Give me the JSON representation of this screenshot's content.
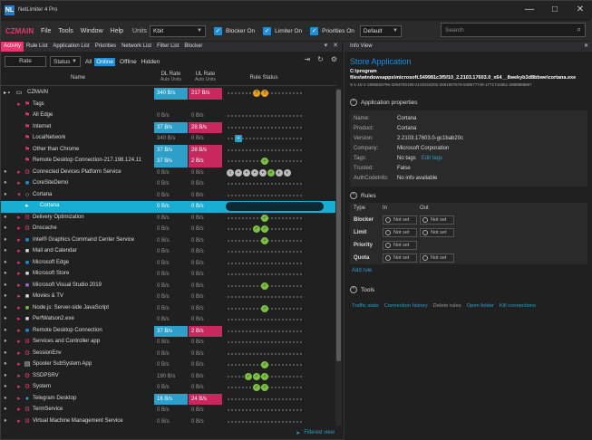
{
  "window": {
    "title": "NetLimiter 4 Pro",
    "logo": "NL",
    "min_icon": "—",
    "max_icon": "□",
    "close_icon": "✕"
  },
  "menubar": {
    "brand": "CZMAIN",
    "items": [
      "File",
      "Tools",
      "Window",
      "Help"
    ],
    "units_label": "Units",
    "units_value": "Kbit",
    "checks": [
      {
        "label": "Blocker On"
      },
      {
        "label": "Limiter On"
      },
      {
        "label": "Priorities On"
      }
    ],
    "profile": "Default",
    "search_placeholder": "Search"
  },
  "tabs": [
    "Activity",
    "Rule List",
    "Application List",
    "Priorities",
    "Network List",
    "Filter List",
    "Blocker"
  ],
  "filterbar": {
    "rate": "Rate",
    "status": "Status",
    "filters": [
      "All",
      "Online",
      "Offline",
      "Hidden"
    ]
  },
  "columns": {
    "name": "Name",
    "dl": "DL Rate",
    "dl_sub": "Auto Units",
    "ul": "UL Rate",
    "ul_sub": "Auto Units",
    "rs": "Rule Status"
  },
  "rows": [
    {
      "name": "CZMAIN",
      "dl": "340 B/s",
      "ul": "217 B/s"
    },
    {
      "name": "Tags",
      "dl": "",
      "ul": ""
    },
    {
      "name": "All Edge",
      "dl": "0 B/s",
      "ul": "0 B/s"
    },
    {
      "name": "Internet",
      "dl": "37 B/s",
      "ul": "28 B/s"
    },
    {
      "name": "LocalNetwork",
      "dl": "340 B/s",
      "ul": "0 B/s"
    },
    {
      "name": "Other than Chrome",
      "dl": "37 B/s",
      "ul": "28 B/s"
    },
    {
      "name": "Remote Desktop Connection-217.198.124.11",
      "dl": "37 B/s",
      "ul": "2 B/s"
    },
    {
      "name": "Connected Devices Platform Service",
      "dl": "0 B/s",
      "ul": "0 B/s"
    },
    {
      "name": "CoreSiteDemo",
      "dl": "0 B/s",
      "ul": "0 B/s"
    },
    {
      "name": "Cortana",
      "dl": "0 B/s",
      "ul": "0 B/s"
    },
    {
      "name": "Cortana",
      "dl": "0 B/s",
      "ul": "0 B/s"
    },
    {
      "name": "Delivery Optimization",
      "dl": "0 B/s",
      "ul": "0 B/s"
    },
    {
      "name": "Dnscache",
      "dl": "0 B/s",
      "ul": "0 B/s"
    },
    {
      "name": "Intel® Graphics Command Center Service",
      "dl": "0 B/s",
      "ul": "0 B/s"
    },
    {
      "name": "Mail and Calendar",
      "dl": "0 B/s",
      "ul": "0 B/s"
    },
    {
      "name": "Microsoft Edge",
      "dl": "0 B/s",
      "ul": "0 B/s"
    },
    {
      "name": "Microsoft Store",
      "dl": "0 B/s",
      "ul": "0 B/s"
    },
    {
      "name": "Microsoft Visual Studio 2019",
      "dl": "0 B/s",
      "ul": "0 B/s"
    },
    {
      "name": "Movies & TV",
      "dl": "0 B/s",
      "ul": "0 B/s"
    },
    {
      "name": "Node.js: Server-side JavaScript",
      "dl": "0 B/s",
      "ul": "0 B/s"
    },
    {
      "name": "PerfWatson2.exe",
      "dl": "0 B/s",
      "ul": "0 B/s"
    },
    {
      "name": "Remote Desktop Connection",
      "dl": "37 B/s",
      "ul": "2 B/s"
    },
    {
      "name": "Services and Controller app",
      "dl": "0 B/s",
      "ul": "0 B/s"
    },
    {
      "name": "SessionEnv",
      "dl": "0 B/s",
      "ul": "0 B/s"
    },
    {
      "name": "Spooler SubSystem App",
      "dl": "0 B/s",
      "ul": "0 B/s"
    },
    {
      "name": "SSDPSRV",
      "dl": "190 B/s",
      "ul": "0 B/s"
    },
    {
      "name": "System",
      "dl": "0 B/s",
      "ul": "0 B/s"
    },
    {
      "name": "Telegram Desktop",
      "dl": "16 B/s",
      "ul": "24 B/s"
    },
    {
      "name": "TermService",
      "dl": "0 B/s",
      "ul": "0 B/s"
    },
    {
      "name": "Virtual Machine Management Service",
      "dl": "0 B/s",
      "ul": "0 B/s"
    }
  ],
  "footer": {
    "filtered": "Filtered view"
  },
  "infoview": {
    "tab": "Info View",
    "title": "Store Application",
    "path": "C:\\program files\\windowsapps\\microsoft.549981c3f5f10_2.2103.17603.0_x64__8wekyb3d8bbwe\\cortana.exe",
    "sid": "S-1-15-2-1806826796-3294700190-2192218202-2581907676-949577749-1771741861-2889899867",
    "app_props_header": "Application properties",
    "props": [
      {
        "k": "Name:",
        "v": "Cortana"
      },
      {
        "k": "Product:",
        "v": "Cortana"
      },
      {
        "k": "Version:",
        "v": "2.2103.17603.0-gc1bab20c"
      },
      {
        "k": "Company:",
        "v": "Microsoft Corporation"
      },
      {
        "k": "Tags:",
        "v": "No tags",
        "link": "Edit tags"
      },
      {
        "k": "Trusted:",
        "v": "False"
      },
      {
        "k": "AuthCodeInfo:",
        "v": "No info available"
      }
    ],
    "rules_header": "Rules",
    "rules_cols": {
      "type": "Type",
      "in": "In",
      "out": "Out"
    },
    "rules": [
      {
        "label": "Blocker",
        "in": "Not set",
        "out": "Not set"
      },
      {
        "label": "Limit",
        "in": "Not set",
        "out": "Not set"
      },
      {
        "label": "Priority",
        "in": "Not set",
        "out": ""
      },
      {
        "label": "Quota",
        "in": "Not set",
        "out": "Not set"
      }
    ],
    "add_rule": "Add rule",
    "tools_header": "Tools",
    "tools": [
      "Traffic stats",
      "Connection history",
      "Delete rules",
      "Open folder",
      "Kill connections"
    ]
  }
}
